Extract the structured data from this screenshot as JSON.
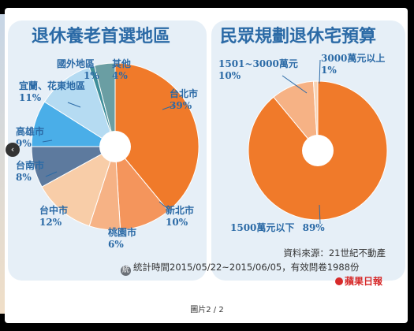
{
  "chart_data": [
    {
      "type": "pie",
      "title": "退休養老首選地區",
      "slices": [
        {
          "label": "台北市",
          "value": 39,
          "value_label": "39%",
          "color": "#f07a2a"
        },
        {
          "label": "新北市",
          "value": 10,
          "value_label": "10%",
          "color": "#f4955c"
        },
        {
          "label": "桃園市",
          "value": 6,
          "value_label": "6%",
          "color": "#f6b285"
        },
        {
          "label": "台中市",
          "value": 12,
          "value_label": "12%",
          "color": "#f8cda8"
        },
        {
          "label": "台南市",
          "value": 8,
          "value_label": "8%",
          "color": "#5d7a9e"
        },
        {
          "label": "高雄市",
          "value": 9,
          "value_label": "9%",
          "color": "#4aaee8"
        },
        {
          "label": "宜蘭、花東地區",
          "value": 11,
          "value_label": "11%",
          "color": "#b5dbf2"
        },
        {
          "label": "國外地區",
          "value": 1,
          "value_label": "1%",
          "color": "#3e8e9a"
        },
        {
          "label": "其他",
          "value": 4,
          "value_label": "4%",
          "color": "#6a9ea3"
        }
      ]
    },
    {
      "type": "pie",
      "title": "民眾規劃退休宅預算",
      "slices": [
        {
          "label": "1500萬元以下",
          "value": 89,
          "value_label": "89%",
          "color": "#f07a2a"
        },
        {
          "label": "1501~3000萬元",
          "value": 10,
          "value_label": "10%",
          "color": "#f6b285"
        },
        {
          "label": "3000萬元以上",
          "value": 1,
          "value_label": "1%",
          "color": "#f8d2b3"
        }
      ]
    }
  ],
  "footer": {
    "source": "資料來源：21世紀不動產",
    "stats_icon": "統",
    "stats": "統計時間2015/05/22~2015/06/05，有效問卷1988份",
    "logo": "蘋果日報"
  },
  "viewer": {
    "caption": "圖片2 / 2",
    "prev_icon": "‹"
  }
}
